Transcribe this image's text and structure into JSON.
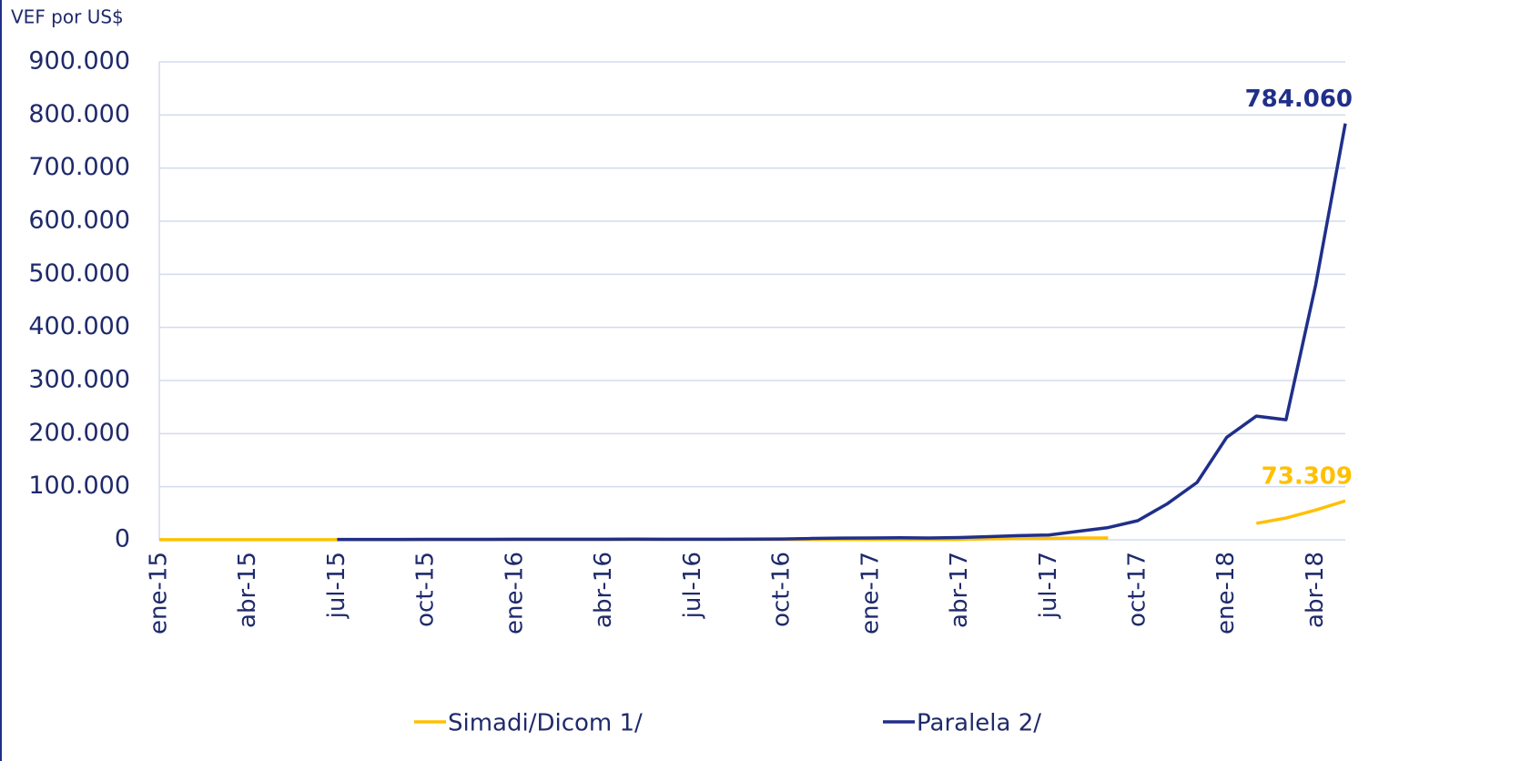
{
  "chart_data": {
    "type": "line",
    "y_axis_label": "VEF por US$",
    "categories": [
      "ene-15",
      null,
      null,
      "abr-15",
      null,
      null,
      "jul-15",
      null,
      null,
      "oct-15",
      null,
      null,
      "ene-16",
      null,
      null,
      "abr-16",
      null,
      null,
      "jul-16",
      null,
      null,
      "oct-16",
      null,
      null,
      "ene-17",
      null,
      null,
      "abr-17",
      null,
      null,
      "jul-17",
      null,
      null,
      "oct-17",
      null,
      null,
      "ene-18",
      null,
      null,
      "abr-18",
      null
    ],
    "series": [
      {
        "name": "Simadi/Dicom 1/",
        "color": "#ffc000",
        "values": [
          170,
          172,
          178,
          190,
          197,
          199,
          199,
          199,
          199,
          199,
          200,
          199,
          200,
          202,
          230,
          300,
          400,
          470,
          620,
          640,
          650,
          660,
          670,
          673,
          690,
          708,
          720,
          725,
          2010,
          2500,
          2640,
          3345,
          3345,
          null,
          null,
          null,
          null,
          30987,
          41000,
          56000,
          73309
        ],
        "value_labels": [
          null,
          null,
          null,
          null,
          null,
          null,
          null,
          null,
          null,
          null,
          null,
          null,
          null,
          null,
          null,
          null,
          null,
          null,
          null,
          null,
          null,
          null,
          null,
          null,
          null,
          null,
          null,
          null,
          null,
          null,
          null,
          null,
          null,
          null,
          null,
          null,
          null,
          null,
          null,
          null,
          "73.309"
        ]
      },
      {
        "name": "Paralela 2/",
        "color": "#1f2f8a",
        "values": [
          null,
          null,
          null,
          null,
          null,
          null,
          680,
          700,
          750,
          800,
          850,
          900,
          1000,
          1100,
          1100,
          1100,
          1200,
          1100,
          1050,
          1100,
          1200,
          1500,
          2500,
          3200,
          3500,
          3800,
          3400,
          4300,
          6000,
          8000,
          9000,
          16000,
          23000,
          36000,
          68000,
          108000,
          193000,
          233000,
          226000,
          480000,
          784060
        ],
        "value_labels": [
          null,
          null,
          null,
          null,
          null,
          null,
          null,
          null,
          null,
          null,
          null,
          null,
          null,
          null,
          null,
          null,
          null,
          null,
          null,
          null,
          null,
          null,
          null,
          null,
          null,
          null,
          null,
          null,
          null,
          null,
          null,
          null,
          null,
          null,
          null,
          null,
          null,
          null,
          null,
          null,
          "784.060"
        ]
      }
    ],
    "ylim": [
      0,
      900000
    ],
    "yticks": [
      0,
      {
        "value": 100000,
        "label": "100.000"
      },
      {
        "value": 200000,
        "label": "200.000"
      },
      {
        "value": 300000,
        "label": "300.000"
      },
      {
        "value": 400000,
        "label": "400.000"
      },
      {
        "value": 500000,
        "label": "500.000"
      },
      {
        "value": 600000,
        "label": "600.000"
      },
      {
        "value": 700000,
        "label": "700.000"
      },
      {
        "value": 800000,
        "label": "800.000"
      },
      {
        "value": 900000,
        "label": "900.000"
      }
    ],
    "grid": true,
    "legend": "bottom"
  }
}
